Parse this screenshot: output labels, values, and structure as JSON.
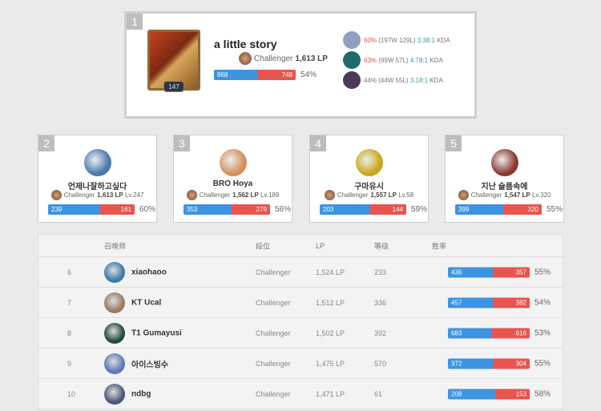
{
  "top": {
    "rank": "1",
    "name": "a little story",
    "level": "147",
    "tier": "Challenger",
    "lp": "1,613 LP",
    "wins": 868,
    "losses": 748,
    "winrate": "54%",
    "champions": [
      {
        "wr": "60%",
        "record": "(197W 129L)",
        "kda": "3.38:1",
        "kda_suffix": "KDA",
        "wr_color": "red",
        "kda_color": "grn",
        "icon_color": "#8fa0c0"
      },
      {
        "wr": "63%",
        "record": "(99W 57L)",
        "kda": "4.78:1",
        "kda_suffix": "KDA",
        "wr_color": "red",
        "kda_color": "blu",
        "icon_color": "#1f6a6a"
      },
      {
        "wr": "44%",
        "record": "(44W 55L)",
        "kda": "3.18:1",
        "kda_suffix": "KDA",
        "wr_color": "",
        "kda_color": "grn",
        "icon_color": "#4a3a5a"
      }
    ]
  },
  "cards": [
    {
      "rank": "2",
      "name": "언제나잘하고싶다",
      "tier": "Challenger",
      "lp": "1,613 LP",
      "level": "Lv.247",
      "wins": 239,
      "losses": 161,
      "winrate": "60%",
      "icon_color": "#4a78b0"
    },
    {
      "rank": "3",
      "name": "BRO Hoya",
      "tier": "Challenger",
      "lp": "1,562 LP",
      "level": "Lv.189",
      "wins": 353,
      "losses": 279,
      "winrate": "56%",
      "icon_color": "#d4905a"
    },
    {
      "rank": "4",
      "name": "구마유시",
      "tier": "Challenger",
      "lp": "1,557 LP",
      "level": "Lv.58",
      "wins": 203,
      "losses": 144,
      "winrate": "59%",
      "icon_color": "#c8a818"
    },
    {
      "rank": "5",
      "name": "지난 슬픔속에",
      "tier": "Challenger",
      "lp": "1,547 LP",
      "level": "Lv.320",
      "wins": 399,
      "losses": 320,
      "winrate": "55%",
      "icon_color": "#8a3a30"
    }
  ],
  "table": {
    "headers": [
      "召唤师",
      "段位",
      "LP",
      "等级",
      "胜率"
    ],
    "rows": [
      {
        "rank": "6",
        "name": "xiaohaoo",
        "tier": "Challenger",
        "lp": "1,524 LP",
        "level": "233",
        "wins": 436,
        "losses": 357,
        "winrate": "55%",
        "icon_color": "#3a7aa8"
      },
      {
        "rank": "7",
        "name": "KT Ucal",
        "tier": "Challenger",
        "lp": "1,512 LP",
        "level": "336",
        "wins": 457,
        "losses": 382,
        "winrate": "54%",
        "icon_color": "#9a7a60"
      },
      {
        "rank": "8",
        "name": "T1 Gumayusi",
        "tier": "Challenger",
        "lp": "1,502 LP",
        "level": "392",
        "wins": 683,
        "losses": 616,
        "winrate": "53%",
        "icon_color": "#1e4a38"
      },
      {
        "rank": "9",
        "name": "아이스빙수",
        "tier": "Challenger",
        "lp": "1,475 LP",
        "level": "570",
        "wins": 372,
        "losses": 304,
        "winrate": "55%",
        "icon_color": "#5a78b8"
      },
      {
        "rank": "10",
        "name": "ndbg",
        "tier": "Challenger",
        "lp": "1,471 LP",
        "level": "61",
        "wins": 208,
        "losses": 153,
        "winrate": "58%",
        "icon_color": "#4a5878"
      }
    ]
  }
}
